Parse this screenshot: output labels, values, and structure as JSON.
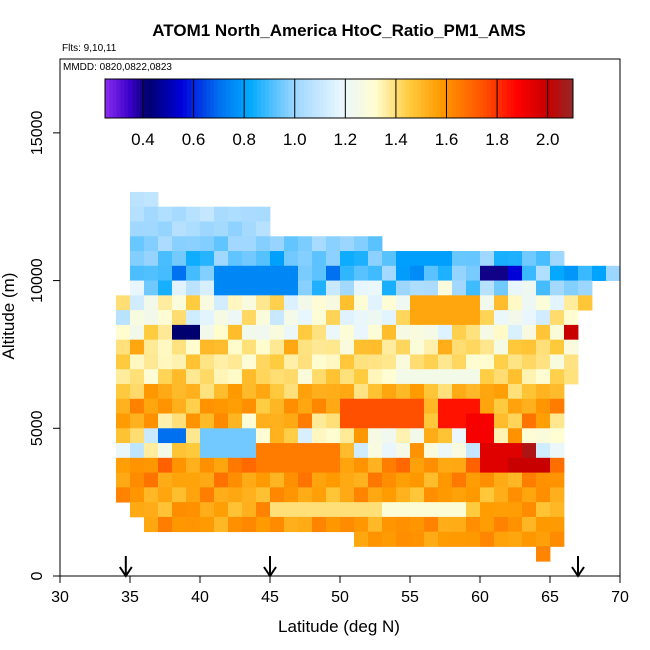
{
  "chart_data": {
    "type": "heatmap",
    "title": "ATOM1 North_America HtoC_Ratio_PM1_AMS",
    "flights_label": "Flts: 9,10,11",
    "dates_label": "MMDD: 0820,0822,0823",
    "xlabel": "Latitude (deg N)",
    "ylabel": "Altitude (m)",
    "xlim": [
      30,
      70
    ],
    "ylim": [
      0,
      17500
    ],
    "x_ticks": [
      "30",
      "35",
      "40",
      "45",
      "50",
      "55",
      "60",
      "65",
      "70"
    ],
    "y_ticks": [
      "0",
      "5000",
      "10000",
      "15000"
    ],
    "colorbar": {
      "range": [
        0.25,
        2.1
      ],
      "ticks": [
        "0.4",
        "0.6",
        "0.8",
        "1.0",
        "1.2",
        "1.4",
        "1.6",
        "1.8",
        "2.0"
      ],
      "stops": [
        {
          "v": 0.25,
          "c": "#8b2cf0"
        },
        {
          "v": 0.35,
          "c": "#3a00c8"
        },
        {
          "v": 0.42,
          "c": "#00006e"
        },
        {
          "v": 0.55,
          "c": "#0000d8"
        },
        {
          "v": 0.7,
          "c": "#0070f0"
        },
        {
          "v": 0.82,
          "c": "#00a8ff"
        },
        {
          "v": 1.0,
          "c": "#9cd6ff"
        },
        {
          "v": 1.18,
          "c": "#e8f6ff"
        },
        {
          "v": 1.32,
          "c": "#fffdd0"
        },
        {
          "v": 1.45,
          "c": "#ffcc40"
        },
        {
          "v": 1.58,
          "c": "#ff9a00"
        },
        {
          "v": 1.75,
          "c": "#ff5000"
        },
        {
          "v": 1.88,
          "c": "#ff0000"
        },
        {
          "v": 2.0,
          "c": "#c80000"
        },
        {
          "v": 2.1,
          "c": "#962828"
        }
      ]
    },
    "grid_cell": {
      "dlat": 1.0,
      "dalt": 500
    },
    "bands": [
      {
        "alt": 12750,
        "lat": [
          35,
          37
        ],
        "base": 1.05,
        "amp": 0.05
      },
      {
        "alt": 12250,
        "lat": [
          35,
          45
        ],
        "base": 1.05,
        "amp": 0.05
      },
      {
        "alt": 11750,
        "lat": [
          35,
          45
        ],
        "base": 1.02,
        "amp": 0.05
      },
      {
        "alt": 11250,
        "lat": [
          35,
          53
        ],
        "base": 0.98,
        "amp": 0.06
      },
      {
        "alt": 10750,
        "lat": [
          35,
          66
        ],
        "base": 0.92,
        "amp": 0.12
      },
      {
        "alt": 10250,
        "lat": [
          35,
          70
        ],
        "base": 0.88,
        "amp": 0.18
      },
      {
        "alt": 9750,
        "lat": [
          35,
          68
        ],
        "base": 1.05,
        "amp": 0.25
      },
      {
        "alt": 9250,
        "lat": [
          34,
          68
        ],
        "base": 1.3,
        "amp": 0.2
      },
      {
        "alt": 8750,
        "lat": [
          34,
          67
        ],
        "base": 1.25,
        "amp": 0.2
      },
      {
        "alt": 8250,
        "lat": [
          34,
          67
        ],
        "base": 1.3,
        "amp": 0.2
      },
      {
        "alt": 7750,
        "lat": [
          34,
          67
        ],
        "base": 1.4,
        "amp": 0.15
      },
      {
        "alt": 7250,
        "lat": [
          34,
          67
        ],
        "base": 1.38,
        "amp": 0.1
      },
      {
        "alt": 6750,
        "lat": [
          34,
          67
        ],
        "base": 1.4,
        "amp": 0.12
      },
      {
        "alt": 6250,
        "lat": [
          34,
          66
        ],
        "base": 1.5,
        "amp": 0.12
      },
      {
        "alt": 5750,
        "lat": [
          34,
          66
        ],
        "base": 1.55,
        "amp": 0.12
      },
      {
        "alt": 5250,
        "lat": [
          34,
          66
        ],
        "base": 1.5,
        "amp": 0.2
      },
      {
        "alt": 4750,
        "lat": [
          34,
          66
        ],
        "base": 1.35,
        "amp": 0.25
      },
      {
        "alt": 4250,
        "lat": [
          34,
          66
        ],
        "base": 1.3,
        "amp": 0.3
      },
      {
        "alt": 3750,
        "lat": [
          34,
          66
        ],
        "base": 1.6,
        "amp": 0.12
      },
      {
        "alt": 3250,
        "lat": [
          34,
          66
        ],
        "base": 1.58,
        "amp": 0.1
      },
      {
        "alt": 2750,
        "lat": [
          34,
          66
        ],
        "base": 1.55,
        "amp": 0.1
      },
      {
        "alt": 2250,
        "lat": [
          35,
          66
        ],
        "base": 1.55,
        "amp": 0.1
      },
      {
        "alt": 1750,
        "lat": [
          36,
          66
        ],
        "base": 1.58,
        "amp": 0.08
      },
      {
        "alt": 1250,
        "lat": [
          51,
          66
        ],
        "base": 1.58,
        "amp": 0.05
      },
      {
        "alt": 750,
        "lat": [
          64,
          65
        ],
        "base": 1.58,
        "amp": 0.05
      }
    ],
    "features": [
      {
        "lat": [
          38,
          40
        ],
        "alt": [
          8000,
          8500
        ],
        "v": 0.42
      },
      {
        "lat": [
          41,
          47
        ],
        "alt": [
          9500,
          10500
        ],
        "v": 0.75
      },
      {
        "lat": [
          54,
          58
        ],
        "alt": [
          10500,
          11000
        ],
        "v": 0.8
      },
      {
        "lat": [
          60,
          62
        ],
        "alt": [
          10000,
          10500
        ],
        "v": 0.4
      },
      {
        "lat": [
          62,
          63
        ],
        "alt": [
          10000,
          10500
        ],
        "v": 0.55
      },
      {
        "lat": [
          37,
          39
        ],
        "alt": [
          4500,
          5000
        ],
        "v": 0.7
      },
      {
        "lat": [
          40,
          44
        ],
        "alt": [
          4000,
          5000
        ],
        "v": 0.95
      },
      {
        "lat": [
          50,
          56
        ],
        "alt": [
          5000,
          6000
        ],
        "v": 1.75
      },
      {
        "lat": [
          57,
          60
        ],
        "alt": [
          5000,
          6000
        ],
        "v": 1.85
      },
      {
        "lat": [
          59,
          61
        ],
        "alt": [
          4500,
          5500
        ],
        "v": 1.9
      },
      {
        "lat": [
          60,
          63
        ],
        "alt": [
          3500,
          4500
        ],
        "v": 1.95
      },
      {
        "lat": [
          62,
          65
        ],
        "alt": [
          3500,
          4000
        ],
        "v": 2.0
      },
      {
        "lat": [
          63,
          64
        ],
        "alt": [
          4000,
          4500
        ],
        "v": 2.05
      },
      {
        "lat": [
          66,
          67
        ],
        "alt": [
          8000,
          8500
        ],
        "v": 2.0
      },
      {
        "lat": [
          45,
          53
        ],
        "alt": [
          2000,
          2500
        ],
        "v": 1.4
      },
      {
        "lat": [
          53,
          59
        ],
        "alt": [
          2000,
          2500
        ],
        "v": 1.3
      },
      {
        "lat": [
          54,
          60
        ],
        "alt": [
          6500,
          7000
        ],
        "v": 1.25
      },
      {
        "lat": [
          55,
          60
        ],
        "alt": [
          8500,
          9500
        ],
        "v": 1.55
      },
      {
        "lat": [
          44,
          50
        ],
        "alt": [
          3500,
          4500
        ],
        "v": 1.65
      }
    ],
    "flight_latitudes": [
      34.7,
      45.0,
      67.0
    ]
  }
}
